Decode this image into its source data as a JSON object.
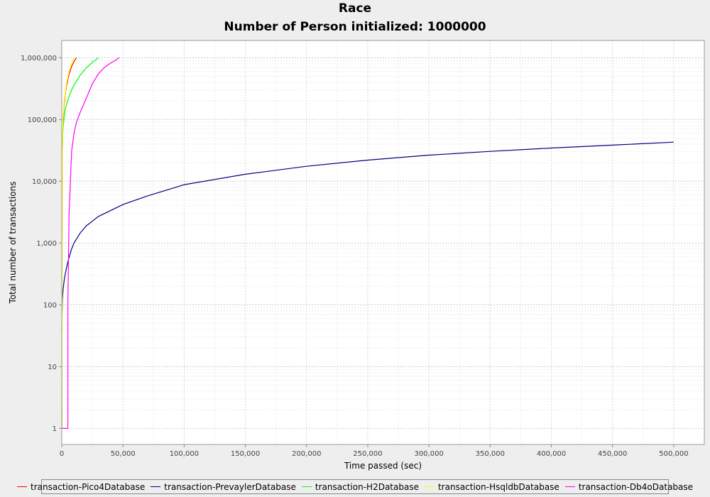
{
  "chart_data": {
    "type": "line",
    "title": "Race",
    "subtitle": "Number of Person initialized: 1000000",
    "xlabel": "Time passed (sec)",
    "ylabel": "Total number of transactions",
    "y_scale": "log",
    "xlim": [
      0,
      525000
    ],
    "ylim": [
      0.55,
      1900000
    ],
    "grid": true,
    "legend_position": "bottom",
    "x_ticks": [
      {
        "value": 0,
        "label": "0"
      },
      {
        "value": 50000,
        "label": "50,000"
      },
      {
        "value": 100000,
        "label": "100,000"
      },
      {
        "value": 150000,
        "label": "150,000"
      },
      {
        "value": 200000,
        "label": "200,000"
      },
      {
        "value": 250000,
        "label": "250,000"
      },
      {
        "value": 300000,
        "label": "300,000"
      },
      {
        "value": 350000,
        "label": "350,000"
      },
      {
        "value": 400000,
        "label": "400,000"
      },
      {
        "value": 450000,
        "label": "450,000"
      },
      {
        "value": 500000,
        "label": "500,000"
      }
    ],
    "y_ticks": [
      {
        "value": 1,
        "label": "1"
      },
      {
        "value": 10,
        "label": "10"
      },
      {
        "value": 100,
        "label": "100"
      },
      {
        "value": 1000,
        "label": "1,000"
      },
      {
        "value": 10000,
        "label": "10,000"
      },
      {
        "value": 100000,
        "label": "100,000"
      },
      {
        "value": 1000000,
        "label": "1,000,000"
      }
    ],
    "series": [
      {
        "name": "transaction-Pico4Database",
        "color": "#ff0000",
        "x": [
          100,
          300,
          500,
          1000,
          2000,
          3000,
          4000,
          5000,
          6000,
          8000,
          10000,
          12000
        ],
        "y": [
          1,
          5000,
          30000,
          90000,
          180000,
          270000,
          360000,
          450000,
          540000,
          720000,
          870000,
          1000000
        ]
      },
      {
        "name": "transaction-PrevaylerDatabase",
        "color": "#000080",
        "x": [
          0,
          500,
          1000,
          2000,
          3000,
          5000,
          8000,
          10000,
          15000,
          20000,
          30000,
          50000,
          70000,
          100000,
          150000,
          200000,
          250000,
          300000,
          350000,
          400000,
          450000,
          500000
        ],
        "y": [
          40,
          120,
          170,
          250,
          330,
          500,
          800,
          1000,
          1450,
          1900,
          2700,
          4200,
          5800,
          8800,
          13000,
          17500,
          22000,
          26500,
          30500,
          34500,
          38500,
          43000
        ]
      },
      {
        "name": "transaction-H2Database",
        "color": "#00ff00",
        "x": [
          100,
          300,
          500,
          1000,
          2000,
          3000,
          5000,
          8000,
          10000,
          15000,
          20000,
          25000,
          30000
        ],
        "y": [
          1,
          15000,
          40000,
          70000,
          110000,
          150000,
          210000,
          300000,
          360000,
          520000,
          680000,
          840000,
          1000000
        ]
      },
      {
        "name": "transaction-HsqldbDatabase",
        "color": "#ffff00",
        "x": [
          100,
          500,
          1000,
          2000,
          4000,
          6000,
          8000,
          10000
        ],
        "y": [
          1,
          40000,
          100000,
          200000,
          400000,
          600000,
          800000,
          1000000
        ]
      },
      {
        "name": "transaction-Db4oDatabase",
        "color": "#ff00ff",
        "x": [
          0,
          5000,
          5000,
          6000,
          8000,
          10000,
          12000,
          15000,
          20000,
          25000,
          30000,
          35000,
          40000,
          45000,
          47000
        ],
        "y": [
          1,
          1,
          100,
          3000,
          30000,
          60000,
          90000,
          130000,
          220000,
          380000,
          550000,
          700000,
          820000,
          940000,
          1000000
        ]
      }
    ]
  }
}
